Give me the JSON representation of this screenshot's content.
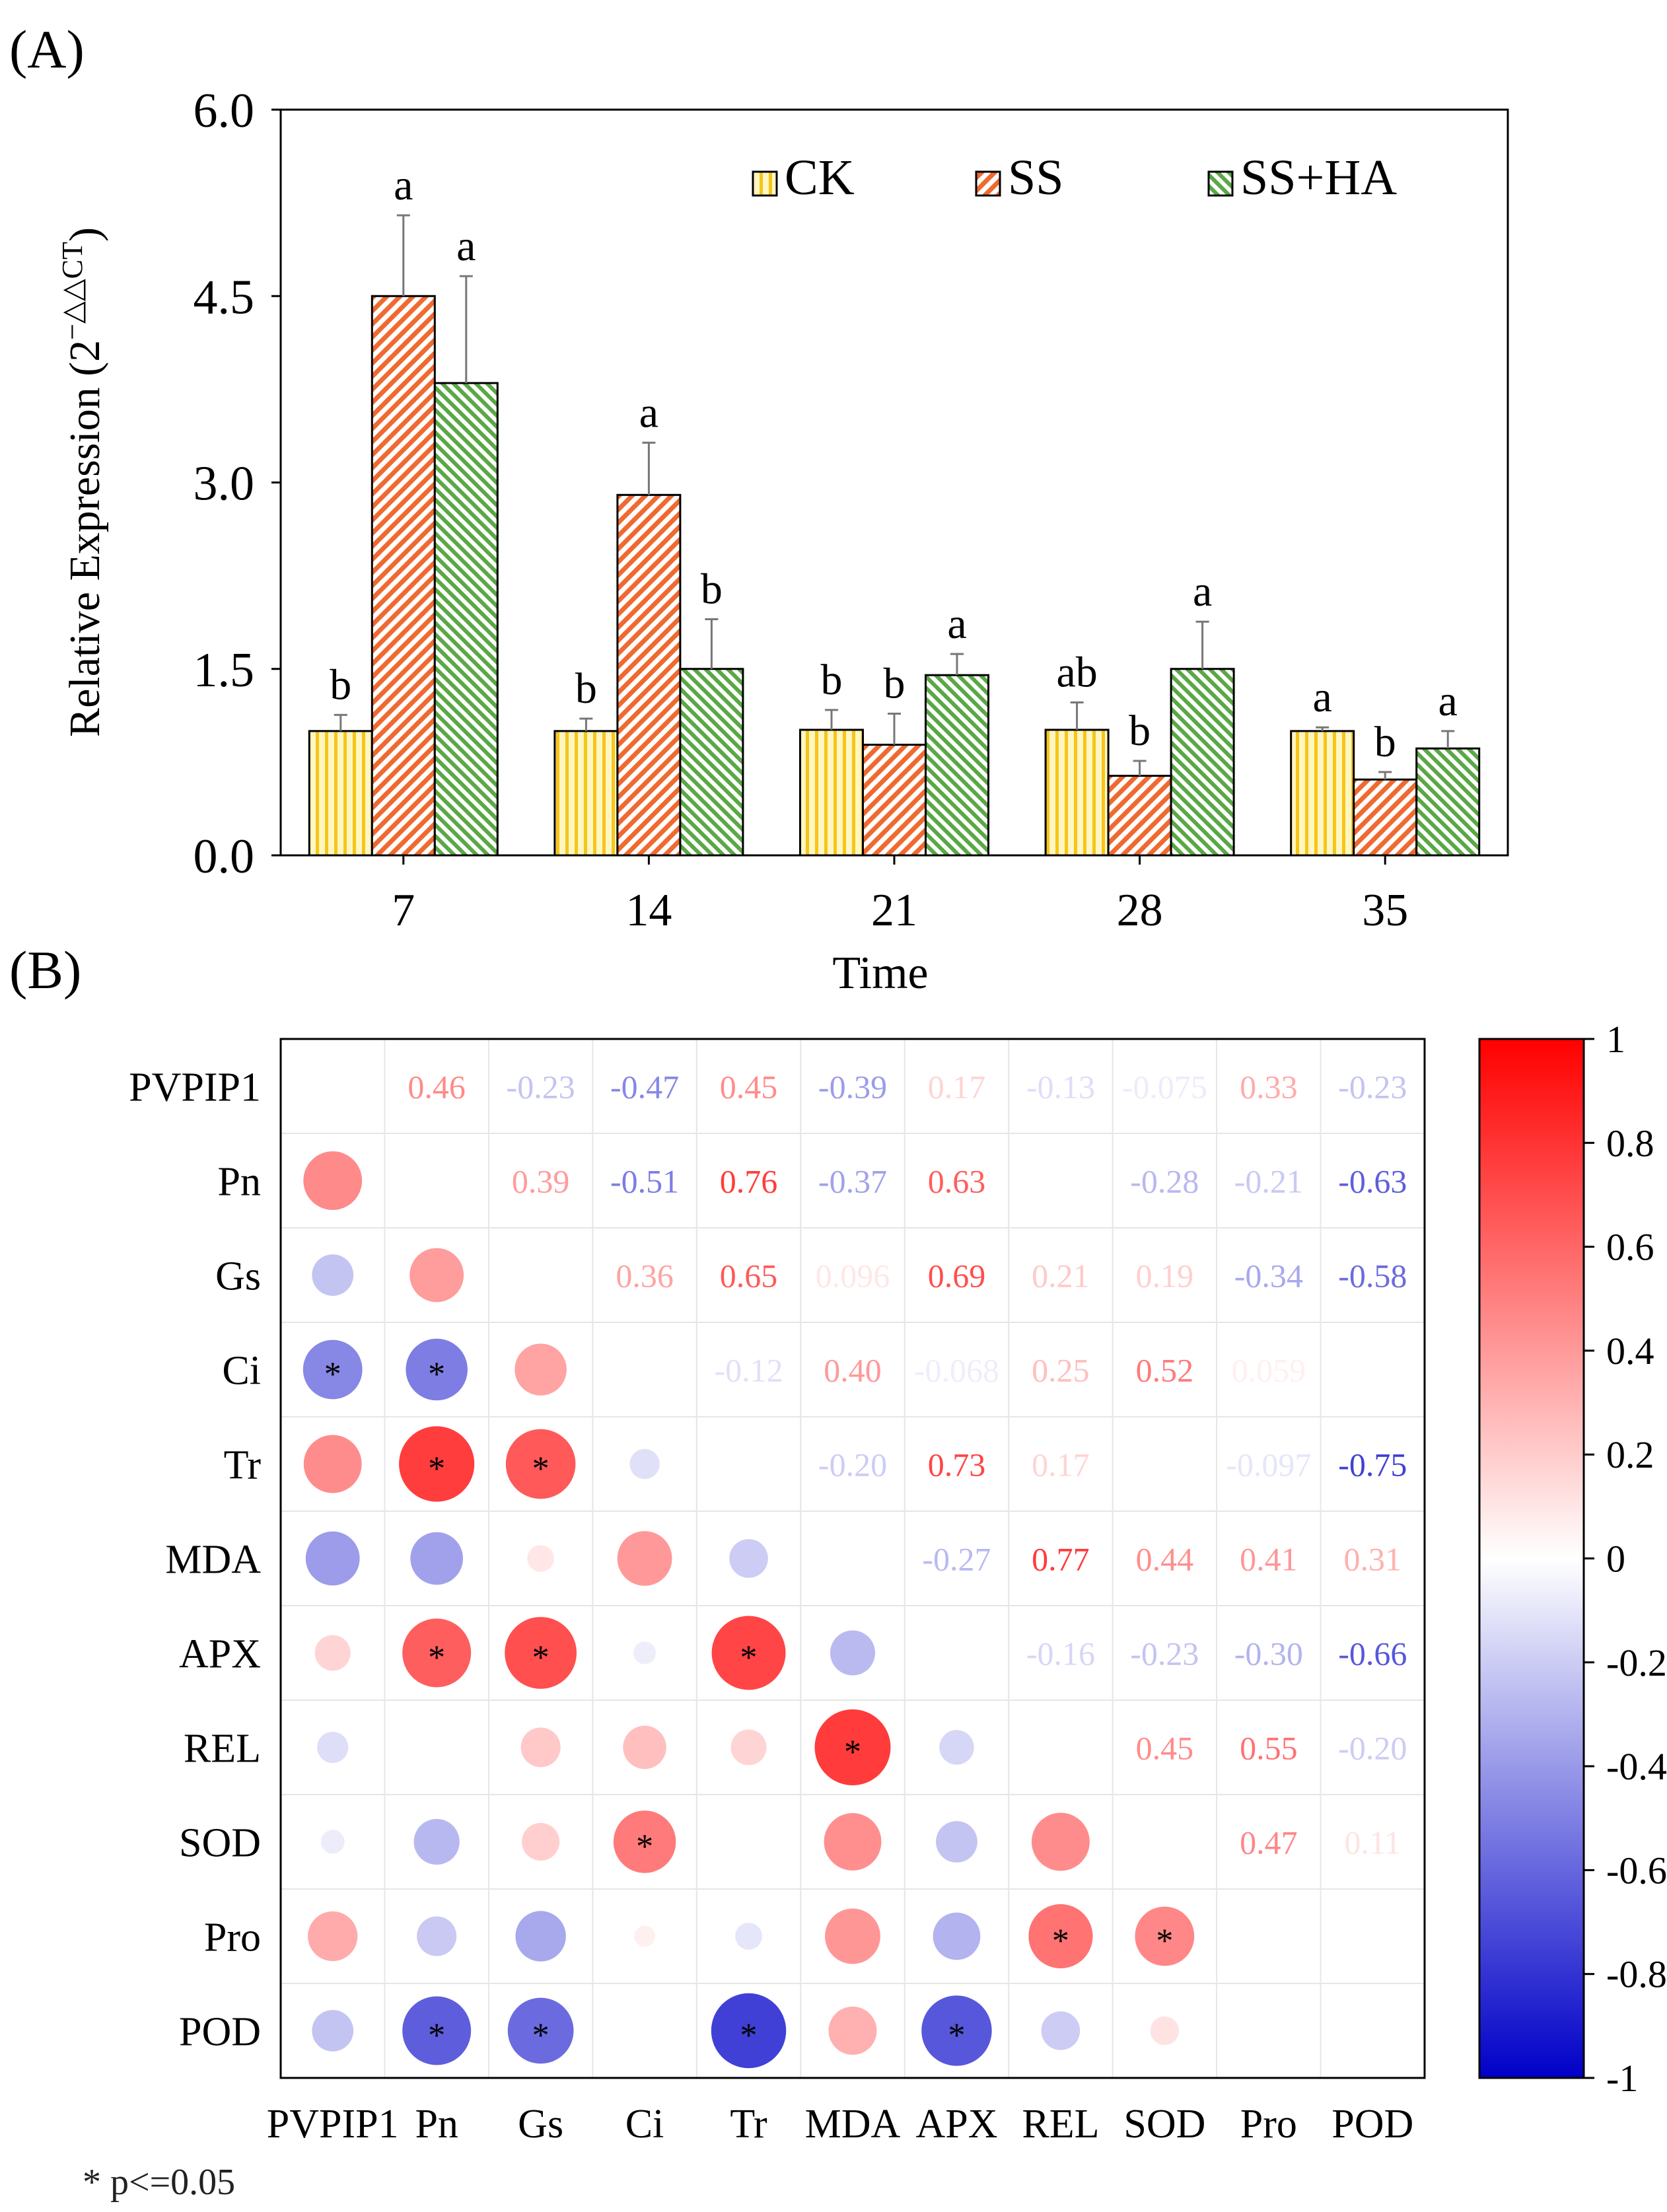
{
  "chart_data": [
    {
      "type": "bar",
      "panel_label": "(A)",
      "title": "",
      "xlabel": "Time",
      "ylabel": "Relative Expression (2",
      "ylabel_superscript": "−△△CT",
      "ylabel_close": ")",
      "ylim": [
        0,
        6
      ],
      "yticks": [
        "0.0",
        "1.5",
        "3.0",
        "4.5",
        "6.0"
      ],
      "categories": [
        "7",
        "14",
        "21",
        "28",
        "35"
      ],
      "legend_position": "top-right",
      "colors": {
        "CK": "#f5c518",
        "SS": "#ef6a30",
        "SS+HA": "#5aa845"
      },
      "series": [
        {
          "name": "CK",
          "values": [
            1.0,
            1.0,
            1.01,
            1.01,
            1.0
          ],
          "errors": [
            0.13,
            0.1,
            0.16,
            0.22,
            0.03
          ],
          "letters": [
            "b",
            "b",
            "b",
            "ab",
            "a"
          ]
        },
        {
          "name": "SS",
          "values": [
            4.5,
            2.9,
            0.89,
            0.64,
            0.61
          ],
          "errors": [
            0.65,
            0.42,
            0.25,
            0.12,
            0.06
          ],
          "letters": [
            "a",
            "a",
            "b",
            "b",
            "b"
          ]
        },
        {
          "name": "SS+HA",
          "values": [
            3.8,
            1.5,
            1.45,
            1.5,
            0.86
          ],
          "errors": [
            0.86,
            0.4,
            0.17,
            0.38,
            0.14
          ],
          "letters": [
            "a",
            "b",
            "a",
            "a",
            "a"
          ]
        }
      ]
    },
    {
      "type": "heatmap",
      "panel_label": "(B)",
      "variables": [
        "PVPIP1",
        "Pn",
        "Gs",
        "Ci",
        "Tr",
        "MDA",
        "APX",
        "REL",
        "SOD",
        "Pro",
        "POD"
      ],
      "upper_labels": [
        {
          "row": 0,
          "col": 1,
          "value": 0.46,
          "text": "0.46"
        },
        {
          "row": 0,
          "col": 2,
          "value": -0.23,
          "text": "-0.23"
        },
        {
          "row": 0,
          "col": 3,
          "value": -0.47,
          "text": "-0.47"
        },
        {
          "row": 0,
          "col": 4,
          "value": 0.45,
          "text": "0.45"
        },
        {
          "row": 0,
          "col": 5,
          "value": -0.39,
          "text": "-0.39"
        },
        {
          "row": 0,
          "col": 6,
          "value": 0.17,
          "text": "0.17"
        },
        {
          "row": 0,
          "col": 7,
          "value": -0.13,
          "text": "-0.13"
        },
        {
          "row": 0,
          "col": 8,
          "value": -0.075,
          "text": "-0.075"
        },
        {
          "row": 0,
          "col": 9,
          "value": 0.33,
          "text": "0.33"
        },
        {
          "row": 0,
          "col": 10,
          "value": -0.23,
          "text": "-0.23"
        },
        {
          "row": 1,
          "col": 2,
          "value": 0.39,
          "text": "0.39"
        },
        {
          "row": 1,
          "col": 3,
          "value": -0.51,
          "text": "-0.51"
        },
        {
          "row": 1,
          "col": 4,
          "value": 0.76,
          "text": "0.76"
        },
        {
          "row": 1,
          "col": 5,
          "value": -0.37,
          "text": "-0.37"
        },
        {
          "row": 1,
          "col": 6,
          "value": 0.63,
          "text": "0.63"
        },
        {
          "row": 1,
          "col": 8,
          "value": -0.28,
          "text": "-0.28"
        },
        {
          "row": 1,
          "col": 9,
          "value": -0.21,
          "text": "-0.21"
        },
        {
          "row": 1,
          "col": 10,
          "value": -0.63,
          "text": "-0.63"
        },
        {
          "row": 2,
          "col": 3,
          "value": 0.36,
          "text": "0.36"
        },
        {
          "row": 2,
          "col": 4,
          "value": 0.65,
          "text": "0.65"
        },
        {
          "row": 2,
          "col": 5,
          "value": 0.096,
          "text": "0.096"
        },
        {
          "row": 2,
          "col": 6,
          "value": 0.69,
          "text": "0.69"
        },
        {
          "row": 2,
          "col": 7,
          "value": 0.21,
          "text": "0.21"
        },
        {
          "row": 2,
          "col": 8,
          "value": 0.19,
          "text": "0.19"
        },
        {
          "row": 2,
          "col": 9,
          "value": -0.34,
          "text": "-0.34"
        },
        {
          "row": 2,
          "col": 10,
          "value": -0.58,
          "text": "-0.58"
        },
        {
          "row": 3,
          "col": 4,
          "value": -0.12,
          "text": "-0.12"
        },
        {
          "row": 3,
          "col": 5,
          "value": 0.4,
          "text": "0.40"
        },
        {
          "row": 3,
          "col": 6,
          "value": -0.068,
          "text": "-0.068"
        },
        {
          "row": 3,
          "col": 7,
          "value": 0.25,
          "text": "0.25"
        },
        {
          "row": 3,
          "col": 8,
          "value": 0.52,
          "text": "0.52"
        },
        {
          "row": 3,
          "col": 9,
          "value": 0.059,
          "text": "0.059"
        },
        {
          "row": 4,
          "col": 5,
          "value": -0.2,
          "text": "-0.20"
        },
        {
          "row": 4,
          "col": 6,
          "value": 0.73,
          "text": "0.73"
        },
        {
          "row": 4,
          "col": 7,
          "value": 0.17,
          "text": "0.17"
        },
        {
          "row": 4,
          "col": 9,
          "value": -0.097,
          "text": "-0.097"
        },
        {
          "row": 4,
          "col": 10,
          "value": -0.75,
          "text": "-0.75"
        },
        {
          "row": 5,
          "col": 6,
          "value": -0.27,
          "text": "-0.27"
        },
        {
          "row": 5,
          "col": 7,
          "value": 0.77,
          "text": "0.77"
        },
        {
          "row": 5,
          "col": 8,
          "value": 0.44,
          "text": "0.44"
        },
        {
          "row": 5,
          "col": 9,
          "value": 0.41,
          "text": "0.41"
        },
        {
          "row": 5,
          "col": 10,
          "value": 0.31,
          "text": "0.31"
        },
        {
          "row": 6,
          "col": 7,
          "value": -0.16,
          "text": "-0.16"
        },
        {
          "row": 6,
          "col": 8,
          "value": -0.23,
          "text": "-0.23"
        },
        {
          "row": 6,
          "col": 9,
          "value": -0.3,
          "text": "-0.30"
        },
        {
          "row": 6,
          "col": 10,
          "value": -0.66,
          "text": "-0.66"
        },
        {
          "row": 7,
          "col": 8,
          "value": 0.45,
          "text": "0.45"
        },
        {
          "row": 7,
          "col": 9,
          "value": 0.55,
          "text": "0.55"
        },
        {
          "row": 7,
          "col": 10,
          "value": -0.2,
          "text": "-0.20"
        },
        {
          "row": 8,
          "col": 9,
          "value": 0.47,
          "text": "0.47"
        },
        {
          "row": 8,
          "col": 10,
          "value": 0.11,
          "text": "0.11"
        }
      ],
      "lower_circles": [
        {
          "row": 1,
          "col": 0,
          "value": 0.46,
          "sig": false
        },
        {
          "row": 2,
          "col": 0,
          "value": -0.23,
          "sig": false
        },
        {
          "row": 2,
          "col": 1,
          "value": 0.39,
          "sig": false
        },
        {
          "row": 3,
          "col": 0,
          "value": -0.47,
          "sig": true
        },
        {
          "row": 3,
          "col": 1,
          "value": -0.51,
          "sig": true
        },
        {
          "row": 3,
          "col": 2,
          "value": 0.36,
          "sig": false
        },
        {
          "row": 4,
          "col": 0,
          "value": 0.45,
          "sig": false
        },
        {
          "row": 4,
          "col": 1,
          "value": 0.76,
          "sig": true
        },
        {
          "row": 4,
          "col": 2,
          "value": 0.65,
          "sig": true
        },
        {
          "row": 4,
          "col": 3,
          "value": -0.12,
          "sig": false
        },
        {
          "row": 5,
          "col": 0,
          "value": -0.39,
          "sig": false
        },
        {
          "row": 5,
          "col": 1,
          "value": -0.37,
          "sig": false
        },
        {
          "row": 5,
          "col": 2,
          "value": 0.096,
          "sig": false
        },
        {
          "row": 5,
          "col": 3,
          "value": 0.4,
          "sig": false
        },
        {
          "row": 5,
          "col": 4,
          "value": -0.2,
          "sig": false
        },
        {
          "row": 6,
          "col": 0,
          "value": 0.17,
          "sig": false
        },
        {
          "row": 6,
          "col": 1,
          "value": 0.63,
          "sig": true
        },
        {
          "row": 6,
          "col": 2,
          "value": 0.69,
          "sig": true
        },
        {
          "row": 6,
          "col": 3,
          "value": -0.068,
          "sig": false
        },
        {
          "row": 6,
          "col": 4,
          "value": 0.73,
          "sig": true
        },
        {
          "row": 6,
          "col": 5,
          "value": -0.27,
          "sig": false
        },
        {
          "row": 7,
          "col": 0,
          "value": -0.13,
          "sig": false
        },
        {
          "row": 7,
          "col": 2,
          "value": 0.21,
          "sig": false
        },
        {
          "row": 7,
          "col": 3,
          "value": 0.25,
          "sig": false
        },
        {
          "row": 7,
          "col": 4,
          "value": 0.17,
          "sig": false
        },
        {
          "row": 7,
          "col": 5,
          "value": 0.77,
          "sig": true
        },
        {
          "row": 7,
          "col": 6,
          "value": -0.16,
          "sig": false
        },
        {
          "row": 8,
          "col": 0,
          "value": -0.075,
          "sig": false
        },
        {
          "row": 8,
          "col": 1,
          "value": -0.28,
          "sig": false
        },
        {
          "row": 8,
          "col": 2,
          "value": 0.19,
          "sig": false
        },
        {
          "row": 8,
          "col": 3,
          "value": 0.52,
          "sig": true
        },
        {
          "row": 8,
          "col": 5,
          "value": 0.44,
          "sig": false
        },
        {
          "row": 8,
          "col": 6,
          "value": -0.23,
          "sig": false
        },
        {
          "row": 8,
          "col": 7,
          "value": 0.45,
          "sig": false
        },
        {
          "row": 9,
          "col": 0,
          "value": 0.33,
          "sig": false
        },
        {
          "row": 9,
          "col": 1,
          "value": -0.21,
          "sig": false
        },
        {
          "row": 9,
          "col": 2,
          "value": -0.34,
          "sig": false
        },
        {
          "row": 9,
          "col": 3,
          "value": 0.059,
          "sig": false
        },
        {
          "row": 9,
          "col": 4,
          "value": -0.097,
          "sig": false
        },
        {
          "row": 9,
          "col": 5,
          "value": 0.41,
          "sig": false
        },
        {
          "row": 9,
          "col": 6,
          "value": -0.3,
          "sig": false
        },
        {
          "row": 9,
          "col": 7,
          "value": 0.55,
          "sig": true
        },
        {
          "row": 9,
          "col": 8,
          "value": 0.47,
          "sig": true
        },
        {
          "row": 10,
          "col": 0,
          "value": -0.23,
          "sig": false
        },
        {
          "row": 10,
          "col": 1,
          "value": -0.63,
          "sig": true
        },
        {
          "row": 10,
          "col": 2,
          "value": -0.58,
          "sig": true
        },
        {
          "row": 10,
          "col": 4,
          "value": -0.75,
          "sig": true
        },
        {
          "row": 10,
          "col": 5,
          "value": 0.31,
          "sig": false
        },
        {
          "row": 10,
          "col": 6,
          "value": -0.66,
          "sig": true
        },
        {
          "row": 10,
          "col": 7,
          "value": -0.2,
          "sig": false
        },
        {
          "row": 10,
          "col": 8,
          "value": 0.11,
          "sig": false
        }
      ],
      "sig_marker": "*",
      "colorbar": {
        "range": [
          -1,
          1
        ],
        "ticks": [
          "1",
          "0.8",
          "0.6",
          "0.4",
          "0.2",
          "0",
          "-0.2",
          "-0.4",
          "-0.6",
          "-0.8",
          "-1"
        ],
        "colors": {
          "neg": "#0000c8",
          "mid": "#ffffff",
          "pos": "#ff0000"
        }
      },
      "footnote": "* p<=0.05"
    }
  ]
}
